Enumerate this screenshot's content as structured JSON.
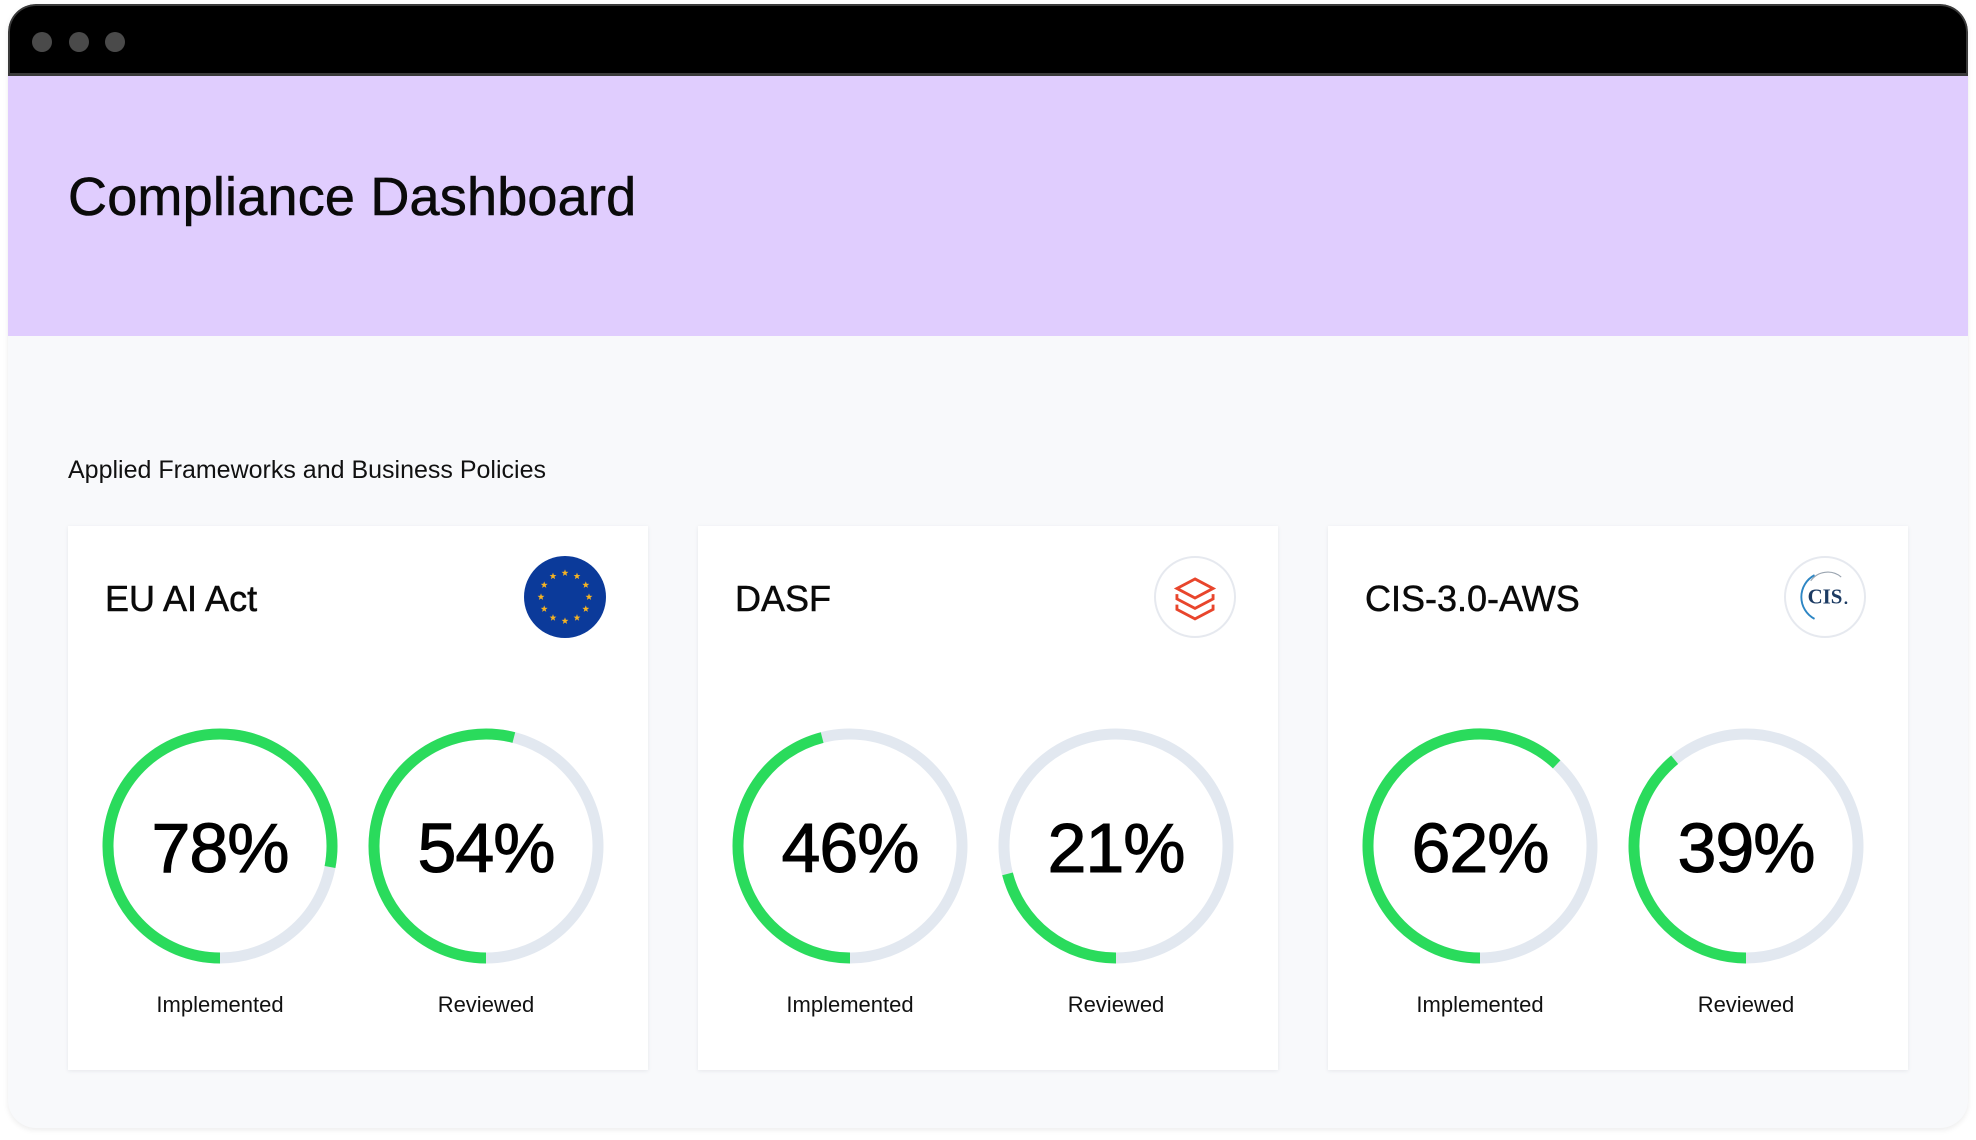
{
  "window": {
    "controls": [
      "window-dot",
      "window-dot",
      "window-dot"
    ]
  },
  "header": {
    "title": "Compliance Dashboard",
    "background_color": "#e0cdfe"
  },
  "section": {
    "title": "Applied Frameworks and Business Policies"
  },
  "colors": {
    "progress": "#2adb5c",
    "track": "#e2e8f0"
  },
  "frameworks": [
    {
      "name": "EU AI Act",
      "logo": "eu-flag-icon",
      "metrics": [
        {
          "label": "Implemented",
          "value": 78,
          "display": "78%"
        },
        {
          "label": "Reviewed",
          "value": 54,
          "display": "54%"
        }
      ]
    },
    {
      "name": "DASF",
      "logo": "databricks-stack-icon",
      "metrics": [
        {
          "label": "Implemented",
          "value": 46,
          "display": "46%"
        },
        {
          "label": "Reviewed",
          "value": 21,
          "display": "21%"
        }
      ]
    },
    {
      "name": "CIS-3.0-AWS",
      "logo": "cis-logo-icon",
      "logo_text": "CIS",
      "metrics": [
        {
          "label": "Implemented",
          "value": 62,
          "display": "62%"
        },
        {
          "label": "Reviewed",
          "value": 39,
          "display": "39%"
        }
      ]
    }
  ]
}
